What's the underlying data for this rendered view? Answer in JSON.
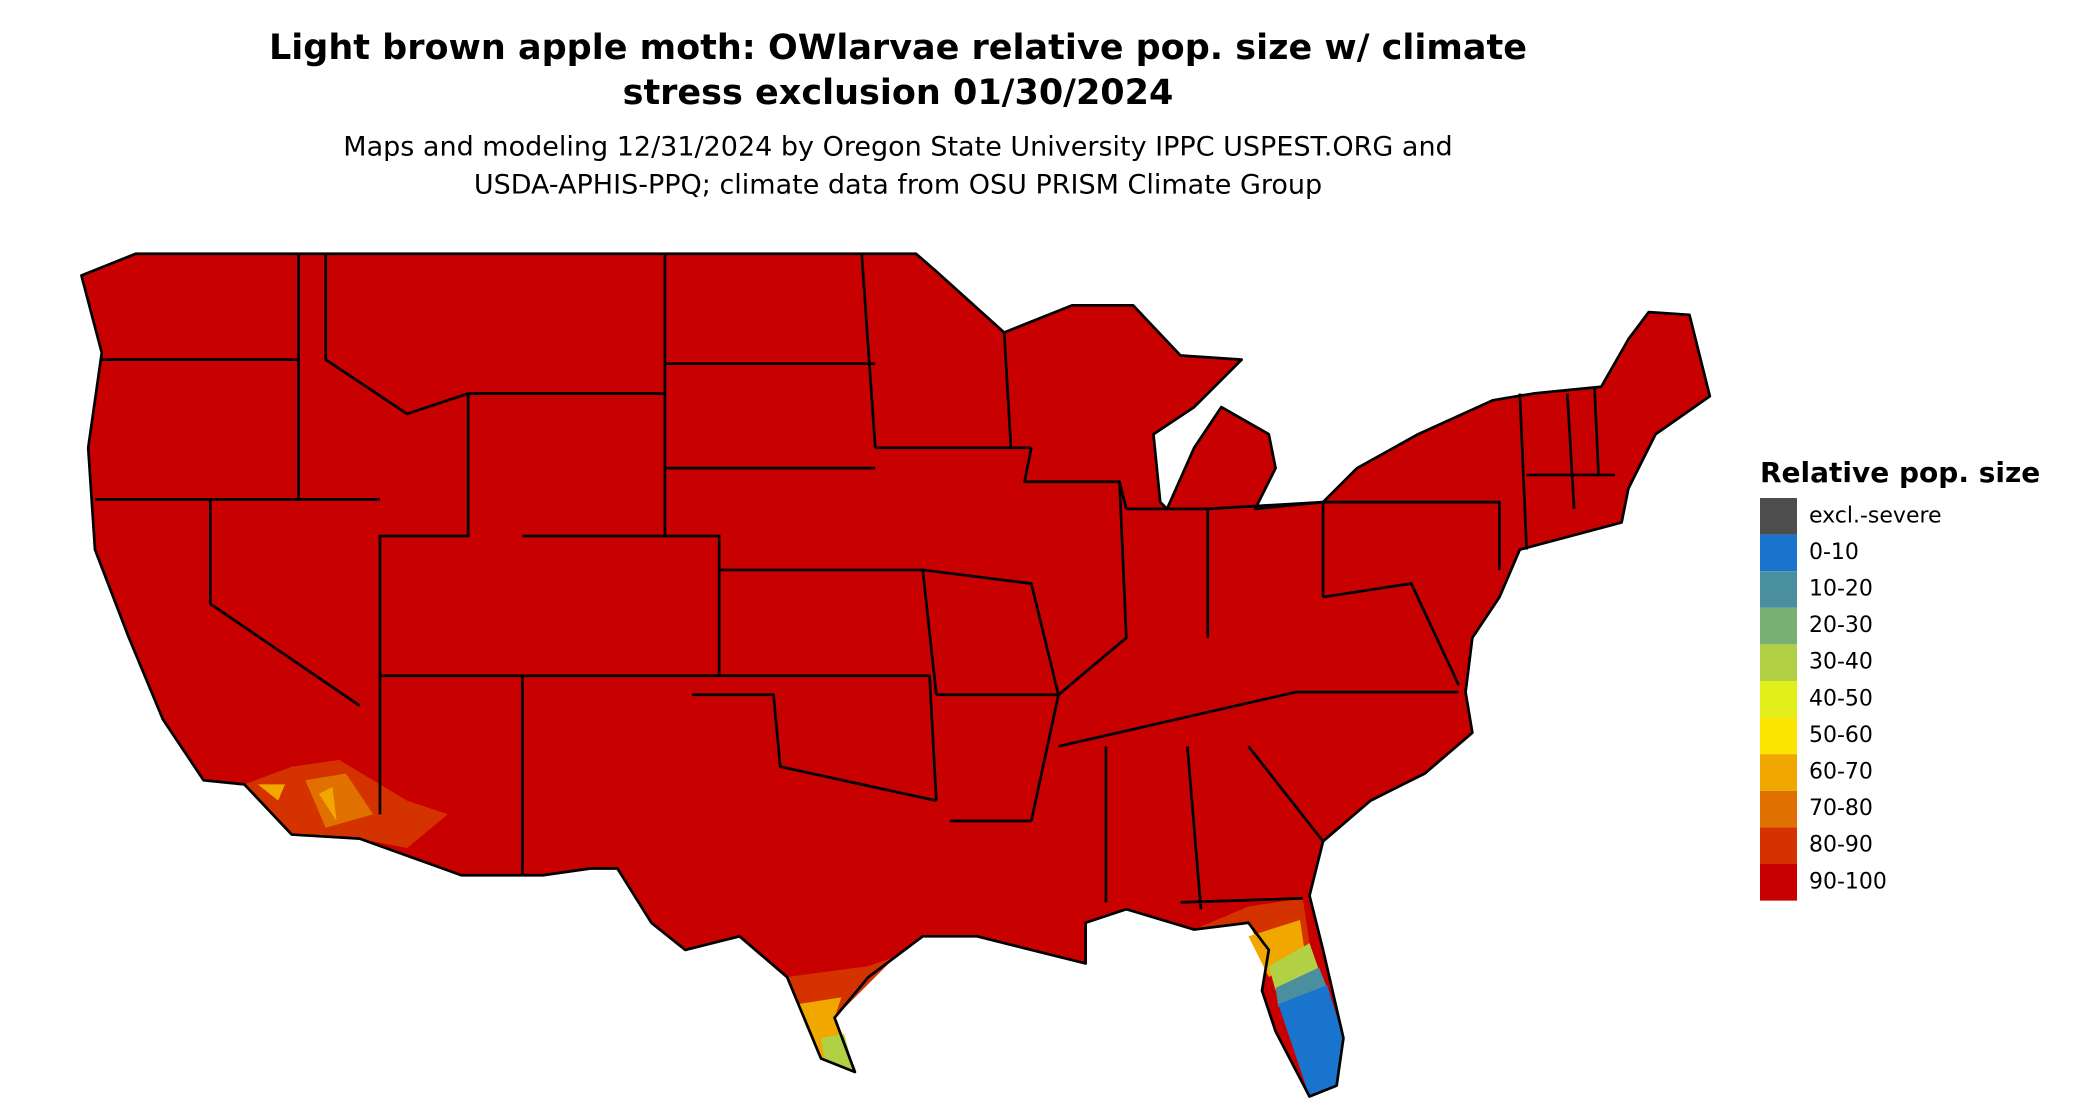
{
  "title": [
    "Light brown apple moth: OWlarvae relative pop. size w/ climate",
    "stress exclusion 01/30/2024"
  ],
  "subtitle": [
    "Maps and modeling 12/31/2024 by Oregon State University IPPC USPEST.ORG and",
    "USDA-APHIS-PPQ; climate data from OSU PRISM Climate Group"
  ],
  "legend": {
    "title": "Relative pop. size",
    "items": [
      {
        "label": "excl.-severe",
        "color": "#4d4d4d"
      },
      {
        "label": "0-10",
        "color": "#1874cd"
      },
      {
        "label": "10-20",
        "color": "#4a8fa0"
      },
      {
        "label": "20-30",
        "color": "#7aaf74"
      },
      {
        "label": "30-40",
        "color": "#b2d045"
      },
      {
        "label": "40-50",
        "color": "#e2ef1a"
      },
      {
        "label": "50-60",
        "color": "#fae600"
      },
      {
        "label": "60-70",
        "color": "#f0a800"
      },
      {
        "label": "70-80",
        "color": "#e07000"
      },
      {
        "label": "80-90",
        "color": "#d43300"
      },
      {
        "label": "90-100",
        "color": "#c80000"
      }
    ]
  }
}
